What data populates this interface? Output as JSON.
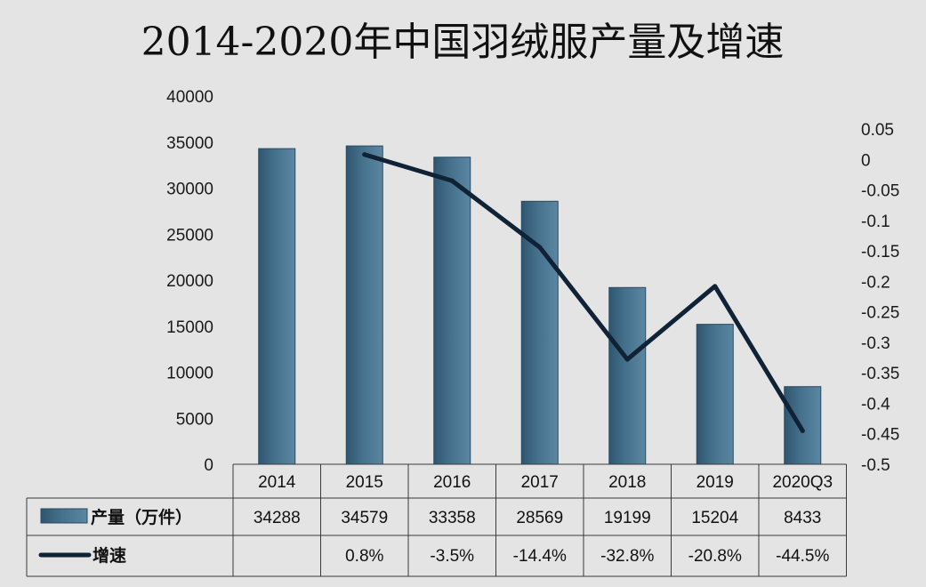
{
  "chart_data": {
    "type": "bar",
    "title": "2014-2020年中国羽绒服产量及增速",
    "categories": [
      "2014",
      "2015",
      "2016",
      "2017",
      "2018",
      "2019",
      "2020Q3"
    ],
    "series": [
      {
        "name": "产量（万件）",
        "type": "bar",
        "axis": "left",
        "values": [
          34288,
          34579,
          33358,
          28569,
          19199,
          15204,
          8433
        ],
        "table_labels": [
          "34288",
          "34579",
          "33358",
          "28569",
          "19199",
          "15204",
          "8433"
        ],
        "color": "#46718c"
      },
      {
        "name": "增速",
        "type": "line",
        "axis": "right",
        "values": [
          null,
          0.008,
          -0.035,
          -0.144,
          -0.328,
          -0.208,
          -0.445
        ],
        "table_labels": [
          "",
          "0.8%",
          "-3.5%",
          "-14.4%",
          "-32.8%",
          "-20.8%",
          "-44.5%"
        ],
        "color": "#0f2236"
      }
    ],
    "y_left": {
      "ylim": [
        0,
        40000
      ],
      "ticks": [
        "0",
        "5000",
        "10000",
        "15000",
        "20000",
        "25000",
        "30000",
        "35000",
        "40000"
      ]
    },
    "y_right": {
      "ylim": [
        -0.5,
        0.05
      ],
      "ticks": [
        "-0.5",
        "-0.45",
        "-0.4",
        "-0.35",
        "-0.3",
        "-0.25",
        "-0.2",
        "-0.15",
        "-0.1",
        "-0.05",
        "0",
        "0.05"
      ]
    },
    "legend": "data-table",
    "grid": false
  }
}
